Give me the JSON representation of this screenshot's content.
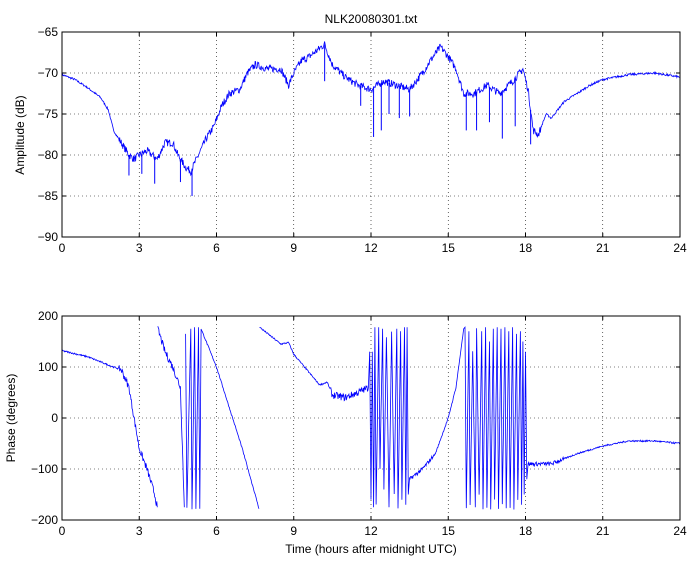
{
  "chart_data": [
    {
      "type": "line",
      "title": "NLK20080301.txt",
      "xlabel": "",
      "ylabel": "Amplitude (dB)",
      "xlim": [
        0,
        24
      ],
      "ylim": [
        -90,
        -65
      ],
      "xticks": [
        0,
        3,
        6,
        9,
        12,
        15,
        18,
        21,
        24
      ],
      "yticks": [
        -90,
        -85,
        -80,
        -75,
        -70,
        -65
      ],
      "grid": true,
      "color": "#0000ff",
      "series": [
        {
          "name": "amplitude",
          "points": [
            [
              0,
              -70.2
            ],
            [
              0.5,
              -70.8
            ],
            [
              1,
              -71.8
            ],
            [
              1.5,
              -73
            ],
            [
              1.8,
              -74.5
            ],
            [
              2,
              -77
            ],
            [
              2.3,
              -78.5
            ],
            [
              2.6,
              -80
            ],
            [
              2.8,
              -80.5
            ],
            [
              3,
              -80
            ],
            [
              3.3,
              -79.5
            ],
            [
              3.5,
              -80
            ],
            [
              3.7,
              -80.5
            ],
            [
              4,
              -78.5
            ],
            [
              4.3,
              -78.5
            ],
            [
              4.5,
              -80
            ],
            [
              4.8,
              -81.5
            ],
            [
              5,
              -82
            ],
            [
              5.3,
              -80
            ],
            [
              5.6,
              -78
            ],
            [
              5.9,
              -76.5
            ],
            [
              6.2,
              -74
            ],
            [
              6.5,
              -72.5
            ],
            [
              6.9,
              -72
            ],
            [
              7.2,
              -70
            ],
            [
              7.5,
              -69
            ],
            [
              8,
              -69.5
            ],
            [
              8.5,
              -69.5
            ],
            [
              8.8,
              -71.5
            ],
            [
              9,
              -70
            ],
            [
              9.3,
              -68.5
            ],
            [
              9.6,
              -68
            ],
            [
              10,
              -67
            ],
            [
              10.2,
              -66.5
            ],
            [
              10.5,
              -69
            ],
            [
              11,
              -70.5
            ],
            [
              11.5,
              -71.5
            ],
            [
              12,
              -72
            ],
            [
              12.5,
              -71
            ],
            [
              13,
              -71.5
            ],
            [
              13.5,
              -72
            ],
            [
              14,
              -70
            ],
            [
              14.3,
              -68.5
            ],
            [
              14.7,
              -66.8
            ],
            [
              15,
              -68
            ],
            [
              15.3,
              -69.5
            ],
            [
              15.6,
              -72.5
            ],
            [
              16,
              -72.5
            ],
            [
              16.5,
              -71.5
            ],
            [
              17,
              -72.5
            ],
            [
              17.5,
              -71
            ],
            [
              17.9,
              -69.5
            ],
            [
              18.1,
              -72
            ],
            [
              18.3,
              -77
            ],
            [
              18.5,
              -77.5
            ],
            [
              18.8,
              -75
            ],
            [
              19,
              -75.5
            ],
            [
              19.5,
              -73.5
            ],
            [
              20,
              -72.5
            ],
            [
              20.5,
              -71.5
            ],
            [
              21,
              -70.8
            ],
            [
              22,
              -70.2
            ],
            [
              23,
              -70
            ],
            [
              24,
              -70.5
            ]
          ],
          "spikes": [
            [
              2.6,
              -82.5
            ],
            [
              3.1,
              -82.3
            ],
            [
              3.6,
              -83.5
            ],
            [
              4.6,
              -83.3
            ],
            [
              5.05,
              -85
            ],
            [
              10.2,
              -71
            ],
            [
              11.6,
              -74
            ],
            [
              12.1,
              -77.8
            ],
            [
              12.4,
              -77
            ],
            [
              12.7,
              -75
            ],
            [
              13.1,
              -75.5
            ],
            [
              13.5,
              -75.3
            ],
            [
              15.7,
              -77
            ],
            [
              16.1,
              -77
            ],
            [
              16.6,
              -76
            ],
            [
              17.1,
              -78
            ],
            [
              17.6,
              -76.5
            ],
            [
              18.2,
              -78.7
            ]
          ]
        }
      ]
    },
    {
      "type": "line",
      "title": "",
      "xlabel": "Time (hours after midnight UTC)",
      "ylabel": "Phase (degrees)",
      "xlim": [
        0,
        24
      ],
      "ylim": [
        -200,
        200
      ],
      "xticks": [
        0,
        3,
        6,
        9,
        12,
        15,
        18,
        21,
        24
      ],
      "yticks": [
        -200,
        -100,
        0,
        100,
        200
      ],
      "grid": true,
      "color": "#0000ff",
      "series": [
        {
          "name": "phase",
          "segments": [
            [
              [
                0,
                132
              ],
              [
                1,
                120
              ],
              [
                2,
                100
              ],
              [
                2.3,
                95
              ],
              [
                2.6,
                60
              ],
              [
                2.8,
                0
              ],
              [
                3,
                -60
              ],
              [
                3.3,
                -100
              ],
              [
                3.6,
                -150
              ],
              [
                3.7,
                -175
              ]
            ],
            [
              [
                3.72,
                175
              ],
              [
                4,
                130
              ],
              [
                4.3,
                100
              ],
              [
                4.6,
                60
              ],
              [
                4.75,
                -175
              ]
            ],
            [
              [
                4.8,
                165
              ],
              [
                4.85,
                -175
              ],
              [
                5.0,
                175
              ],
              [
                5.05,
                -178
              ],
              [
                5.15,
                178
              ],
              [
                5.2,
                -178
              ],
              [
                5.3,
                178
              ],
              [
                5.35,
                -178
              ],
              [
                5.4,
                175
              ],
              [
                5.6,
                150
              ],
              [
                6,
                100
              ],
              [
                6.5,
                20
              ],
              [
                7,
                -60
              ],
              [
                7.5,
                -150
              ],
              [
                7.65,
                -178
              ]
            ],
            [
              [
                7.67,
                178
              ],
              [
                8,
                165
              ],
              [
                8.5,
                145
              ],
              [
                8.8,
                148
              ],
              [
                9,
                125
              ],
              [
                9.5,
                95
              ],
              [
                10,
                65
              ],
              [
                10.3,
                70
              ],
              [
                10.5,
                45
              ],
              [
                11,
                40
              ],
              [
                11.5,
                50
              ],
              [
                11.9,
                60
              ],
              [
                11.95,
                130
              ],
              [
                12.0,
                -160
              ],
              [
                12.05,
                130
              ],
              [
                12.1,
                -175
              ],
              [
                12.15,
                178
              ],
              [
                12.2,
                -170
              ],
              [
                12.3,
                178
              ],
              [
                12.35,
                -100
              ],
              [
                12.45,
                175
              ],
              [
                12.5,
                -140
              ],
              [
                12.6,
                160
              ],
              [
                12.7,
                -175
              ],
              [
                12.8,
                170
              ],
              [
                12.9,
                -150
              ],
              [
                13.0,
                175
              ],
              [
                13.05,
                -178
              ],
              [
                13.15,
                170
              ],
              [
                13.2,
                -160
              ],
              [
                13.3,
                178
              ],
              [
                13.35,
                -170
              ],
              [
                13.4,
                178
              ],
              [
                13.45,
                -150
              ],
              [
                13.5,
                -120
              ],
              [
                14,
                -100
              ],
              [
                14.5,
                -70
              ],
              [
                15,
                0
              ],
              [
                15.3,
                60
              ],
              [
                15.6,
                175
              ],
              [
                15.65,
                178
              ],
              [
                15.7,
                -178
              ],
              [
                15.8,
                170
              ],
              [
                15.85,
                -170
              ],
              [
                15.95,
                130
              ],
              [
                16.05,
                -175
              ],
              [
                16.1,
                175
              ],
              [
                16.2,
                -150
              ],
              [
                16.3,
                170
              ],
              [
                16.35,
                -178
              ],
              [
                16.45,
                178
              ],
              [
                16.5,
                -175
              ],
              [
                16.6,
                150
              ],
              [
                16.65,
                -178
              ],
              [
                16.75,
                175
              ],
              [
                16.8,
                -160
              ],
              [
                16.9,
                178
              ],
              [
                16.95,
                -178
              ],
              [
                17.05,
                175
              ],
              [
                17.1,
                -170
              ],
              [
                17.2,
                178
              ],
              [
                17.25,
                -178
              ],
              [
                17.35,
                170
              ],
              [
                17.4,
                -175
              ],
              [
                17.5,
                178
              ],
              [
                17.55,
                -178
              ],
              [
                17.65,
                165
              ],
              [
                17.7,
                -160
              ],
              [
                17.8,
                170
              ],
              [
                17.85,
                -170
              ],
              [
                17.9,
                150
              ],
              [
                17.95,
                -150
              ],
              [
                18.0,
                130
              ],
              [
                18.05,
                -120
              ],
              [
                18.1,
                -90
              ],
              [
                19,
                -90
              ],
              [
                20,
                -70
              ],
              [
                21,
                -55
              ],
              [
                22,
                -45
              ],
              [
                23,
                -45
              ],
              [
                24,
                -50
              ]
            ]
          ]
        }
      ]
    }
  ]
}
